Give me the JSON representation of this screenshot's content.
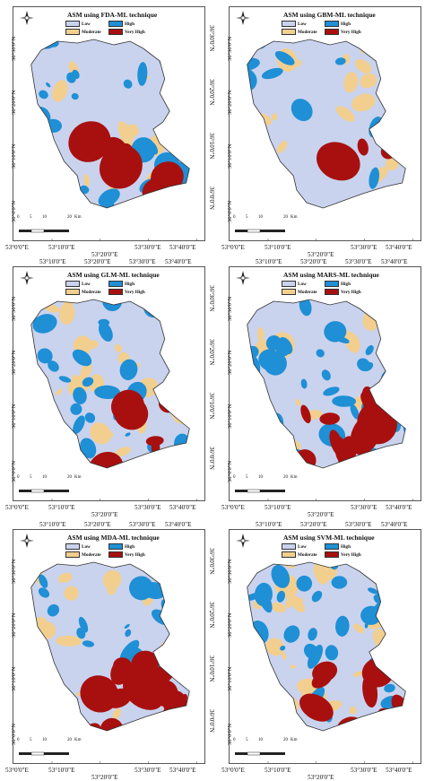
{
  "x_ticks": [
    "53°10'0\"E",
    "53°20'0\"E",
    "53°30'0\"E",
    "53°40'0\"E"
  ],
  "x_tick_bottom_left": "53°0'0\"E",
  "y_ticks": [
    "36°30'0\"N",
    "36°20'0\"N",
    "36°10'0\"N",
    "36°0'0\"N"
  ],
  "scale_labels": [
    "0",
    "5",
    "10",
    "20",
    "Km"
  ],
  "legend": [
    {
      "label": "Low",
      "color": "#c9d3ee"
    },
    {
      "label": "High",
      "color": "#1f8fd6"
    },
    {
      "label": "Moderate",
      "color": "#f2cf8f"
    },
    {
      "label": "Very High",
      "color": "#a8100f"
    }
  ],
  "colors": {
    "low": "#c9d3ee",
    "moderate": "#f2cf8f",
    "high": "#1f8fd6",
    "very_high": "#a8100f",
    "outline": "#333333"
  },
  "icons": {
    "north_arrow": "compass-rose-icon"
  },
  "panels": [
    {
      "title": "ASM using FDA-ML technique"
    },
    {
      "title": "ASM using GBM-ML technique"
    },
    {
      "title": "ASM using GLM-ML technique"
    },
    {
      "title": "ASM using MARS-ML technique"
    },
    {
      "title": "ASM using MDA-ML technique"
    },
    {
      "title": "ASM using SVM-ML technique"
    }
  ]
}
